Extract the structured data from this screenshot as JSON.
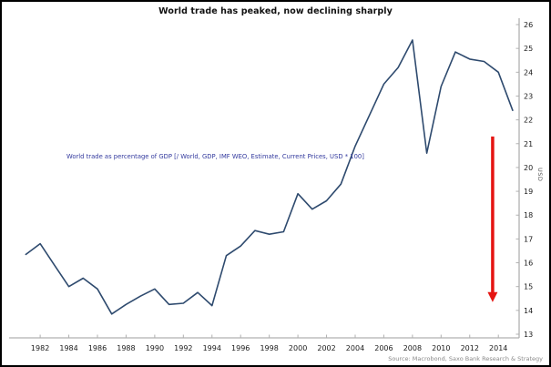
{
  "chart_data": {
    "type": "line",
    "title": "World trade has peaked, now declining sharply",
    "annotation": "World trade as percentage of GDP [/ World, GDP, IMF WEO, Estimate, Current Prices, USD * 100]",
    "source": "Source: Macrobond, Saxo Bank Research & Strategy",
    "ylabel": "USD",
    "x": [
      1981,
      1982,
      1983,
      1984,
      1985,
      1986,
      1987,
      1988,
      1989,
      1990,
      1991,
      1992,
      1993,
      1994,
      1995,
      1996,
      1997,
      1998,
      1999,
      2000,
      2001,
      2002,
      2003,
      2004,
      2005,
      2006,
      2007,
      2008,
      2009,
      2010,
      2011,
      2012,
      2013,
      2014,
      2015
    ],
    "values": [
      16.35,
      16.8,
      15.9,
      15.0,
      15.35,
      14.9,
      13.85,
      14.25,
      14.6,
      14.9,
      14.25,
      14.3,
      14.75,
      14.2,
      16.3,
      16.7,
      17.35,
      17.2,
      17.3,
      18.9,
      18.25,
      18.6,
      19.3,
      20.9,
      22.2,
      23.5,
      24.2,
      25.35,
      20.6,
      23.4,
      24.85,
      24.55,
      24.45,
      24.0,
      22.4
    ],
    "x_ticks": [
      1982,
      1984,
      1986,
      1988,
      1990,
      1992,
      1994,
      1996,
      1998,
      2000,
      2002,
      2004,
      2006,
      2008,
      2010,
      2012,
      2014
    ],
    "y_ticks": [
      13,
      14,
      15,
      16,
      17,
      18,
      19,
      20,
      21,
      22,
      23,
      24,
      25,
      26
    ],
    "xlim": [
      1979.83,
      2015.45
    ],
    "ylim": [
      12.85,
      26.3
    ],
    "grid": false,
    "legend_position": "none",
    "line_color": "#2e4a6e",
    "annotation_color": "#333a9e",
    "axis_color": "#b0b0b0",
    "tick_label_color": "#1a1a1a",
    "arrow": {
      "x": 2013.6,
      "from_value": 21.3,
      "to_value": 14.35,
      "color": "#e51512"
    }
  }
}
